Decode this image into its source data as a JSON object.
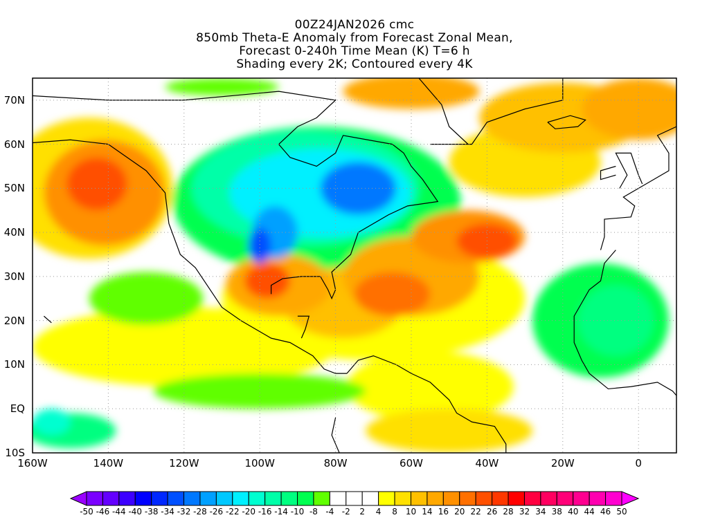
{
  "title": {
    "line1": "00Z24JAN2026 cmc",
    "line2": "850mb Theta-E Anomaly from Forecast Zonal Mean,",
    "line3": "Forecast 0-240h Time Mean (K) T=6 h",
    "line4": "Shading every 2K; Contoured every 4K"
  },
  "chart_data": {
    "type": "heatmap",
    "projection": "lat-lon",
    "lon_range": [
      -160,
      10
    ],
    "lat_range": [
      -10,
      75
    ],
    "x_ticks": [
      {
        "lon": -160,
        "label": "160W"
      },
      {
        "lon": -140,
        "label": "140W"
      },
      {
        "lon": -120,
        "label": "120W"
      },
      {
        "lon": -100,
        "label": "100W"
      },
      {
        "lon": -80,
        "label": "80W"
      },
      {
        "lon": -60,
        "label": "60W"
      },
      {
        "lon": -40,
        "label": "40W"
      },
      {
        "lon": -20,
        "label": "20W"
      },
      {
        "lon": 0,
        "label": "0"
      }
    ],
    "y_ticks": [
      {
        "lat": 70,
        "label": "70N"
      },
      {
        "lat": 60,
        "label": "60N"
      },
      {
        "lat": 50,
        "label": "50N"
      },
      {
        "lat": 40,
        "label": "40N"
      },
      {
        "lat": 30,
        "label": "30N"
      },
      {
        "lat": 20,
        "label": "20N"
      },
      {
        "lat": 10,
        "label": "10N"
      },
      {
        "lat": 0,
        "label": "EQ"
      },
      {
        "lat": -10,
        "label": "10S"
      }
    ],
    "grid": true,
    "colorbar": {
      "labels": [
        "-50",
        "-46",
        "-44",
        "-40",
        "-38",
        "-34",
        "-32",
        "-28",
        "-26",
        "-22",
        "-20",
        "-16",
        "-14",
        "-10",
        "-8",
        "-4",
        "-2",
        "2",
        "4",
        "8",
        "10",
        "14",
        "16",
        "20",
        "22",
        "26",
        "28",
        "32",
        "34",
        "38",
        "40",
        "44",
        "46",
        "50"
      ],
      "colors": [
        "#7a00ff",
        "#6400ff",
        "#3c00ff",
        "#0000ff",
        "#0028ff",
        "#0050ff",
        "#0078ff",
        "#00a0ff",
        "#00c8ff",
        "#00f0ff",
        "#00ffd0",
        "#00ffa8",
        "#00ff80",
        "#00ff50",
        "#60ff00",
        "#ffffff",
        "#ffffff",
        "#ffffff",
        "#ffff00",
        "#ffe000",
        "#ffc000",
        "#ffa800",
        "#ff9000",
        "#ff7000",
        "#ff5000",
        "#ff3800",
        "#ff0000",
        "#ff0040",
        "#ff0060",
        "#ff0078",
        "#ff0090",
        "#ff00b0",
        "#ff00d0"
      ],
      "under_color": "#9a00ff",
      "over_color": "#ff00ff"
    },
    "anomaly_features": [
      {
        "lon": -85,
        "lat": 47,
        "rlon": 38,
        "rlat": 17,
        "value": -10
      },
      {
        "lon": -88,
        "lat": 50,
        "rlon": 30,
        "rlat": 13,
        "value": -16
      },
      {
        "lon": -84,
        "lat": 49,
        "rlon": 24,
        "rlat": 10,
        "value": -22
      },
      {
        "lon": -74,
        "lat": 50,
        "rlon": 10,
        "rlat": 6,
        "value": -30
      },
      {
        "lon": -96,
        "lat": 40,
        "rlon": 6,
        "rlat": 6,
        "value": -28
      },
      {
        "lon": -100,
        "lat": 37,
        "rlon": 3,
        "rlat": 4,
        "value": -34
      },
      {
        "lon": -70,
        "lat": 25,
        "rlon": 40,
        "rlat": 14,
        "value": 6
      },
      {
        "lon": -120,
        "lat": 14,
        "rlon": 40,
        "rlat": 9,
        "value": 6
      },
      {
        "lon": -145,
        "lat": 50,
        "rlon": 22,
        "rlat": 16,
        "value": 8
      },
      {
        "lon": -141,
        "lat": 49,
        "rlon": 16,
        "rlat": 12,
        "value": 16
      },
      {
        "lon": -143,
        "lat": 51,
        "rlon": 8,
        "rlat": 6,
        "value": 24
      },
      {
        "lon": -30,
        "lat": 56,
        "rlon": 20,
        "rlat": 8,
        "value": 8
      },
      {
        "lon": -20,
        "lat": 66,
        "rlon": 22,
        "rlat": 8,
        "value": 10
      },
      {
        "lon": 0,
        "lat": 68,
        "rlon": 15,
        "rlat": 7,
        "value": 14
      },
      {
        "lon": -55,
        "lat": 5,
        "rlon": 22,
        "rlat": 8,
        "value": 6
      },
      {
        "lon": -50,
        "lat": -5,
        "rlon": 22,
        "rlat": 5,
        "value": 8
      },
      {
        "lon": -95,
        "lat": 28,
        "rlon": 14,
        "rlat": 7,
        "value": 14
      },
      {
        "lon": -78,
        "lat": 24,
        "rlon": 16,
        "rlat": 8,
        "value": 12
      },
      {
        "lon": -60,
        "lat": 30,
        "rlon": 18,
        "rlat": 9,
        "value": 14
      },
      {
        "lon": -45,
        "lat": 39,
        "rlon": 15,
        "rlat": 6,
        "value": 16
      },
      {
        "lon": -40,
        "lat": 38,
        "rlon": 8,
        "rlat": 4,
        "value": 22
      },
      {
        "lon": -98,
        "lat": 29,
        "rlon": 6,
        "rlat": 4,
        "value": 22
      },
      {
        "lon": -65,
        "lat": 26,
        "rlon": 10,
        "rlat": 5,
        "value": 20
      },
      {
        "lon": -130,
        "lat": 25,
        "rlon": 15,
        "rlat": 6,
        "value": -8
      },
      {
        "lon": -10,
        "lat": 20,
        "rlon": 18,
        "rlat": 13,
        "value": -10
      },
      {
        "lon": -6,
        "lat": 20,
        "rlon": 10,
        "rlat": 8,
        "value": -14
      },
      {
        "lon": -150,
        "lat": -5,
        "rlon": 12,
        "rlat": 4,
        "value": -12
      },
      {
        "lon": -155,
        "lat": -3,
        "rlon": 5,
        "rlat": 3,
        "value": -20
      },
      {
        "lon": -100,
        "lat": 4,
        "rlon": 28,
        "rlat": 4,
        "value": -6
      },
      {
        "lon": -110,
        "lat": 73,
        "rlon": 15,
        "rlat": 2,
        "value": -8
      },
      {
        "lon": -60,
        "lat": 72,
        "rlon": 18,
        "rlat": 4,
        "value": 14
      }
    ]
  }
}
